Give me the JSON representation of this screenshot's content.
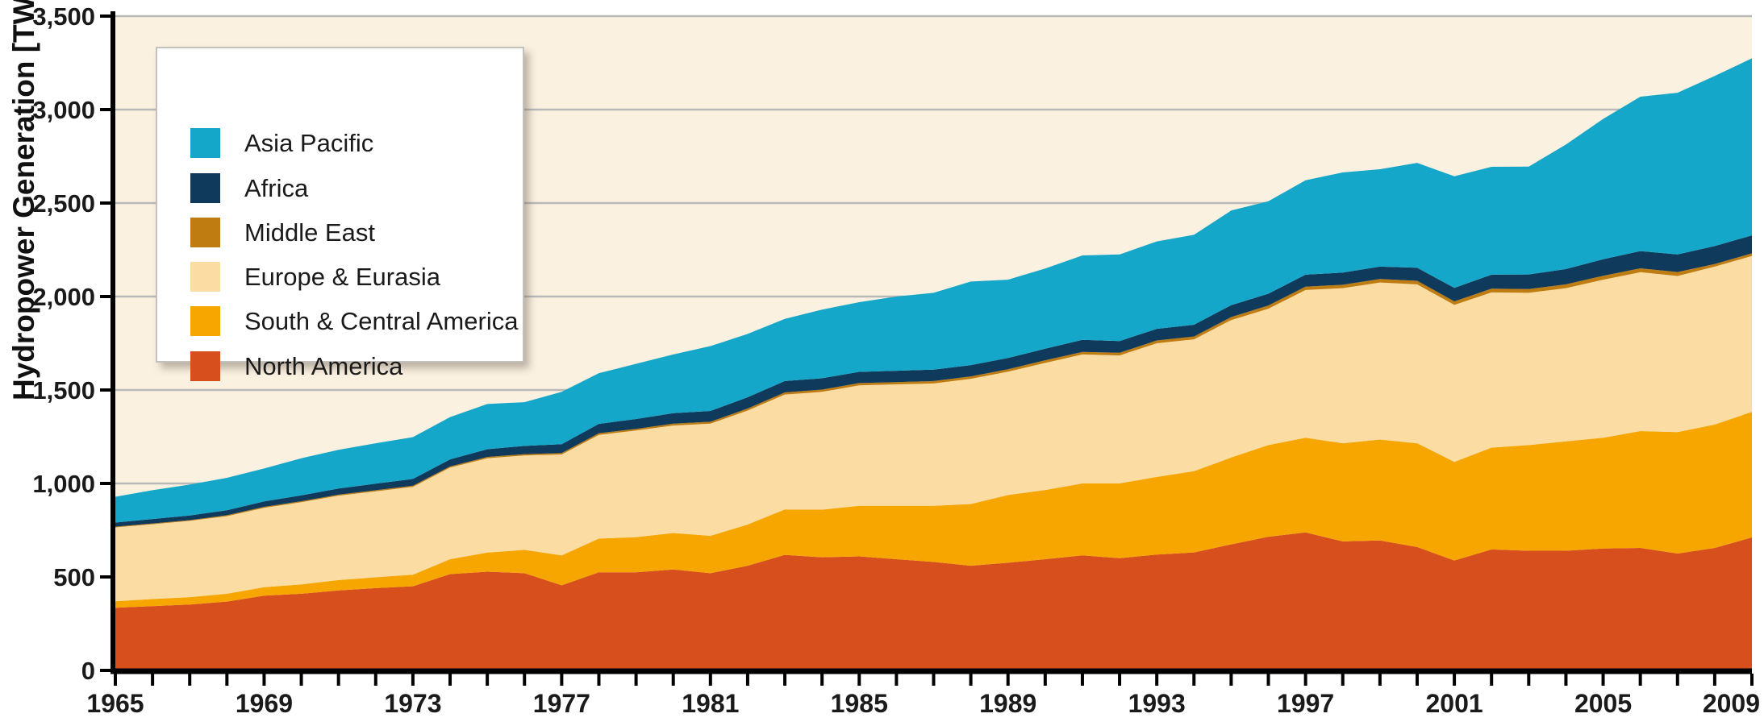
{
  "y_axis": {
    "label": "Hydropower Generation [TWh]",
    "tick_values": [
      0,
      500,
      1000,
      1500,
      2000,
      2500,
      3000,
      3500
    ],
    "tick_labels": [
      "0",
      "500",
      "1,000",
      "1,500",
      "2,000",
      "2,500",
      "3,000",
      "3,500"
    ]
  },
  "x_axis": {
    "labeled_years": [
      1965,
      1969,
      1973,
      1977,
      1981,
      1985,
      1989,
      1993,
      1997,
      2001,
      2005,
      2009
    ],
    "minor_tick_every_years": 1
  },
  "legend": {
    "items": [
      {
        "label": "Asia Pacific",
        "color": "#14A7C9"
      },
      {
        "label": "Africa",
        "color": "#103A5C"
      },
      {
        "label": "Middle East",
        "color": "#BE7C11"
      },
      {
        "label": "Europe & Eurasia",
        "color": "#FBDCA3"
      },
      {
        "label": "South & Central America",
        "color": "#F7A600"
      },
      {
        "label": "North America",
        "color": "#D84F1E"
      }
    ]
  },
  "colors": {
    "plot_background": "#FBF1E1",
    "gridline": "#B9B9B9",
    "axis": "#000000",
    "text": "#1A1A1A",
    "legend_border": "#C3C0BB"
  },
  "chart_data": {
    "type": "area",
    "stacked": true,
    "title": "",
    "xlabel": "",
    "ylabel": "Hydropower Generation [TWh]",
    "ylim": [
      0,
      3500
    ],
    "xlim": [
      1965,
      2009
    ],
    "grid": true,
    "legend_position": "top-left",
    "units": "TWh",
    "x": [
      1965,
      1966,
      1967,
      1968,
      1969,
      1970,
      1971,
      1972,
      1973,
      1974,
      1975,
      1976,
      1977,
      1978,
      1979,
      1980,
      1981,
      1982,
      1983,
      1984,
      1985,
      1986,
      1987,
      1988,
      1989,
      1990,
      1991,
      1992,
      1993,
      1994,
      1995,
      1996,
      1997,
      1998,
      1999,
      2000,
      2001,
      2002,
      2003,
      2004,
      2005,
      2006,
      2007,
      2008,
      2009
    ],
    "series": [
      {
        "name": "North America",
        "color": "#D84F1E",
        "values": [
          335,
          344,
          352,
          368,
          400,
          410,
          428,
          440,
          450,
          515,
          528,
          520,
          455,
          525,
          525,
          540,
          520,
          560,
          618,
          605,
          610,
          595,
          580,
          560,
          576,
          595,
          615,
          600,
          620,
          631,
          674,
          715,
          738,
          690,
          695,
          660,
          588,
          647,
          640,
          640,
          652,
          655,
          625,
          655,
          711
        ]
      },
      {
        "name": "South & Central America",
        "color": "#F7A600",
        "values": [
          35,
          38,
          40,
          42,
          45,
          50,
          55,
          58,
          62,
          80,
          102,
          125,
          160,
          180,
          188,
          195,
          200,
          220,
          243,
          255,
          270,
          285,
          300,
          330,
          362,
          370,
          385,
          400,
          415,
          435,
          465,
          490,
          507,
          525,
          540,
          555,
          527,
          545,
          565,
          585,
          593,
          625,
          650,
          660,
          672
        ]
      },
      {
        "name": "Europe & Eurasia",
        "color": "#FBDCA3",
        "values": [
          395,
          400,
          408,
          415,
          425,
          440,
          452,
          460,
          470,
          490,
          505,
          505,
          540,
          555,
          570,
          575,
          600,
          610,
          615,
          630,
          645,
          650,
          655,
          670,
          660,
          680,
          690,
          685,
          715,
          705,
          735,
          730,
          790,
          830,
          840,
          850,
          840,
          830,
          815,
          820,
          845,
          850,
          835,
          845,
          834
        ]
      },
      {
        "name": "Middle East",
        "color": "#BE7C11",
        "values": [
          4,
          4,
          4,
          5,
          5,
          5,
          5,
          6,
          6,
          6,
          7,
          7,
          8,
          9,
          9,
          10,
          10,
          11,
          11,
          12,
          12,
          12,
          13,
          13,
          13,
          14,
          14,
          14,
          15,
          15,
          16,
          17,
          18,
          18,
          19,
          19,
          19,
          20,
          20,
          20,
          21,
          21,
          21,
          14,
          14
        ]
      },
      {
        "name": "Africa",
        "color": "#103A5C",
        "values": [
          22,
          24,
          25,
          27,
          29,
          31,
          33,
          35,
          36,
          38,
          41,
          44,
          47,
          50,
          53,
          56,
          58,
          60,
          61,
          61,
          60,
          61,
          61,
          60,
          60,
          62,
          64,
          63,
          62,
          63,
          64,
          63,
          64,
          65,
          66,
          70,
          72,
          75,
          78,
          82,
          88,
          92,
          94,
          96,
          96
        ]
      },
      {
        "name": "Asia Pacific",
        "color": "#14A7C9",
        "values": [
          138,
          154,
          165,
          173,
          176,
          199,
          207,
          216,
          224,
          226,
          242,
          234,
          280,
          271,
          295,
          314,
          347,
          339,
          332,
          367,
          373,
          397,
          411,
          447,
          419,
          429,
          452,
          463,
          468,
          481,
          506,
          495,
          505,
          536,
          521,
          561,
          597,
          577,
          577,
          666,
          751,
          826,
          865,
          910,
          947
        ]
      }
    ]
  }
}
